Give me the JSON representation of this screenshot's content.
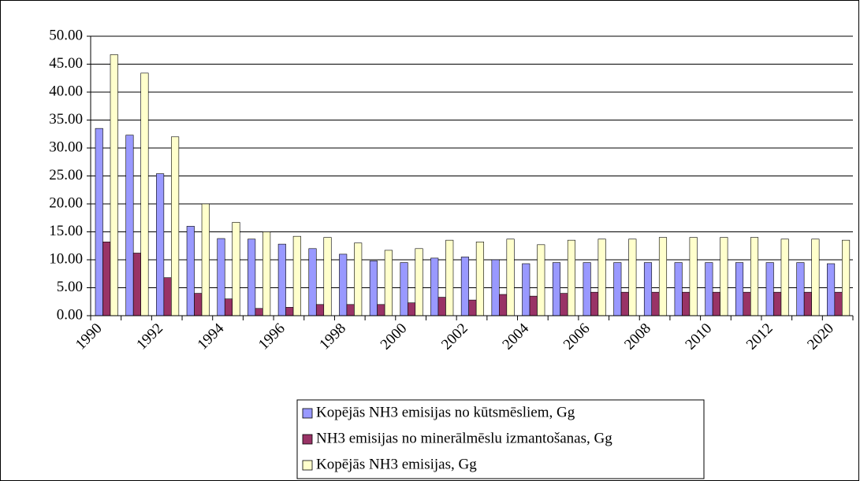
{
  "chart_data": {
    "type": "bar",
    "categories": [
      "1990",
      null,
      "1992",
      null,
      "1994",
      null,
      "1996",
      null,
      "1998",
      null,
      "2000",
      null,
      "2002",
      null,
      "2004",
      null,
      "2006",
      null,
      "2008",
      null,
      "2010",
      null,
      "2012",
      null,
      "2020"
    ],
    "series": [
      {
        "name": "Kopējās NH3 emisijas no kūtsmēsliem, Gg",
        "color": "#9999ff",
        "values": [
          33.5,
          32.3,
          25.4,
          16.0,
          13.8,
          13.7,
          12.8,
          12.0,
          11.0,
          9.8,
          9.5,
          10.3,
          10.5,
          10.0,
          9.3,
          9.5,
          9.5,
          9.5,
          9.5,
          9.5,
          9.5,
          9.5,
          9.5,
          9.5,
          9.3
        ]
      },
      {
        "name": "NH3 emisijas no minerālmēslu izmantošanas, Gg",
        "color": "#993366",
        "values": [
          13.2,
          11.2,
          6.8,
          4.0,
          3.0,
          1.3,
          1.5,
          2.0,
          2.0,
          2.0,
          2.3,
          3.3,
          2.8,
          3.8,
          3.5,
          4.0,
          4.2,
          4.2,
          4.2,
          4.2,
          4.2,
          4.2,
          4.2,
          4.2,
          4.2
        ]
      },
      {
        "name": "Kopējās NH3 emisijas, Gg",
        "color": "#ffffcc",
        "values": [
          46.7,
          43.4,
          32.0,
          20.0,
          16.7,
          15.0,
          14.2,
          14.0,
          13.0,
          11.7,
          12.0,
          13.5,
          13.2,
          13.7,
          12.7,
          13.5,
          13.7,
          13.7,
          14.0,
          14.0,
          14.0,
          14.0,
          13.7,
          13.7,
          13.5
        ]
      }
    ],
    "ylim": [
      0,
      50
    ],
    "yticks": [
      {
        "value": 0,
        "label": "0.00"
      },
      {
        "value": 5,
        "label": "5.00"
      },
      {
        "value": 10,
        "label": "10.00"
      },
      {
        "value": 15,
        "label": "15.00"
      },
      {
        "value": 20,
        "label": "20.00"
      },
      {
        "value": 25,
        "label": "25.00"
      },
      {
        "value": 30,
        "label": "30.00"
      },
      {
        "value": 35,
        "label": "35.00"
      },
      {
        "value": 40,
        "label": "40.00"
      },
      {
        "value": 45,
        "label": "45.00"
      },
      {
        "value": 50,
        "label": "50.00"
      }
    ],
    "grid": true,
    "legend": "bottom"
  }
}
